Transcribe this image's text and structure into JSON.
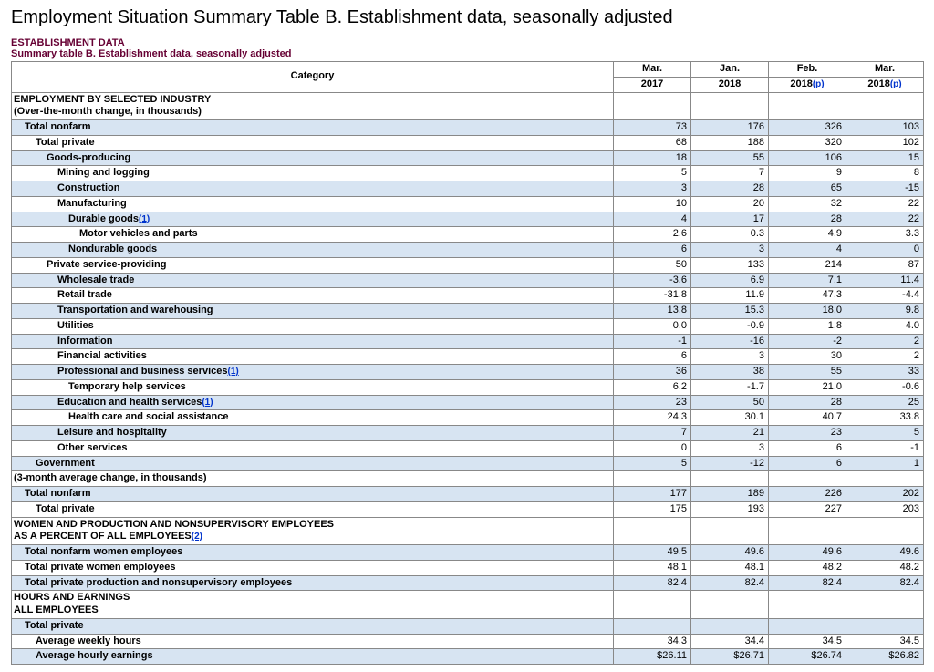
{
  "title": "Employment Situation Summary Table B. Establishment data, seasonally adjusted",
  "subhead1": "ESTABLISHMENT DATA",
  "subhead2": "Summary table B. Establishment data, seasonally adjusted",
  "columns": {
    "cat": "Category",
    "c1a": "Mar.",
    "c1b": "2017",
    "c2a": "Jan.",
    "c2b": "2018",
    "c3a": "Feb.",
    "c3b": "2018",
    "c4a": "Mar.",
    "c4b": "2018",
    "p": "(p)"
  },
  "sections": [
    {
      "header": "EMPLOYMENT BY SELECTED INDUSTRY\n(Over-the-month change, in thousands)",
      "rows": [
        {
          "label": "Total nonfarm",
          "indent": 1,
          "shaded": true,
          "v": [
            "73",
            "176",
            "326",
            "103"
          ]
        },
        {
          "label": "Total private",
          "indent": 2,
          "shaded": false,
          "v": [
            "68",
            "188",
            "320",
            "102"
          ]
        },
        {
          "label": "Goods-producing",
          "indent": 3,
          "shaded": true,
          "v": [
            "18",
            "55",
            "106",
            "15"
          ]
        },
        {
          "label": "Mining and logging",
          "indent": 4,
          "shaded": false,
          "v": [
            "5",
            "7",
            "9",
            "8"
          ]
        },
        {
          "label": "Construction",
          "indent": 4,
          "shaded": true,
          "v": [
            "3",
            "28",
            "65",
            "-15"
          ]
        },
        {
          "label": "Manufacturing",
          "indent": 4,
          "shaded": false,
          "v": [
            "10",
            "20",
            "32",
            "22"
          ]
        },
        {
          "label": "Durable goods",
          "indent": 5,
          "shaded": true,
          "fn": "1",
          "v": [
            "4",
            "17",
            "28",
            "22"
          ]
        },
        {
          "label": "Motor vehicles and parts",
          "indent": 6,
          "shaded": false,
          "v": [
            "2.6",
            "0.3",
            "4.9",
            "3.3"
          ]
        },
        {
          "label": "Nondurable goods",
          "indent": 5,
          "shaded": true,
          "v": [
            "6",
            "3",
            "4",
            "0"
          ]
        },
        {
          "label": "Private service-providing",
          "indent": 3,
          "shaded": false,
          "v": [
            "50",
            "133",
            "214",
            "87"
          ]
        },
        {
          "label": "Wholesale trade",
          "indent": 4,
          "shaded": true,
          "v": [
            "-3.6",
            "6.9",
            "7.1",
            "11.4"
          ]
        },
        {
          "label": "Retail trade",
          "indent": 4,
          "shaded": false,
          "v": [
            "-31.8",
            "11.9",
            "47.3",
            "-4.4"
          ]
        },
        {
          "label": "Transportation and warehousing",
          "indent": 4,
          "shaded": true,
          "v": [
            "13.8",
            "15.3",
            "18.0",
            "9.8"
          ]
        },
        {
          "label": "Utilities",
          "indent": 4,
          "shaded": false,
          "v": [
            "0.0",
            "-0.9",
            "1.8",
            "4.0"
          ]
        },
        {
          "label": "Information",
          "indent": 4,
          "shaded": true,
          "v": [
            "-1",
            "-16",
            "-2",
            "2"
          ]
        },
        {
          "label": "Financial activities",
          "indent": 4,
          "shaded": false,
          "v": [
            "6",
            "3",
            "30",
            "2"
          ]
        },
        {
          "label": "Professional and business services",
          "indent": 4,
          "shaded": true,
          "fn": "1",
          "v": [
            "36",
            "38",
            "55",
            "33"
          ]
        },
        {
          "label": "Temporary help services",
          "indent": 5,
          "shaded": false,
          "v": [
            "6.2",
            "-1.7",
            "21.0",
            "-0.6"
          ]
        },
        {
          "label": "Education and health services",
          "indent": 4,
          "shaded": true,
          "fn": "1",
          "v": [
            "23",
            "50",
            "28",
            "25"
          ]
        },
        {
          "label": "Health care and social assistance",
          "indent": 5,
          "shaded": false,
          "v": [
            "24.3",
            "30.1",
            "40.7",
            "33.8"
          ]
        },
        {
          "label": "Leisure and hospitality",
          "indent": 4,
          "shaded": true,
          "v": [
            "7",
            "21",
            "23",
            "5"
          ]
        },
        {
          "label": "Other services",
          "indent": 4,
          "shaded": false,
          "v": [
            "0",
            "3",
            "6",
            "-1"
          ]
        },
        {
          "label": "Government",
          "indent": 2,
          "shaded": true,
          "v": [
            "5",
            "-12",
            "6",
            "1"
          ]
        }
      ]
    },
    {
      "header": "(3-month average change, in thousands)",
      "rows": [
        {
          "label": "Total nonfarm",
          "indent": 1,
          "shaded": true,
          "v": [
            "177",
            "189",
            "226",
            "202"
          ]
        },
        {
          "label": "Total private",
          "indent": 2,
          "shaded": false,
          "v": [
            "175",
            "193",
            "227",
            "203"
          ]
        }
      ]
    },
    {
      "header": "WOMEN AND PRODUCTION AND NONSUPERVISORY EMPLOYEES\nAS A PERCENT OF ALL EMPLOYEES",
      "header_fn": "2",
      "rows": [
        {
          "label": "Total nonfarm women employees",
          "indent": 1,
          "shaded": true,
          "v": [
            "49.5",
            "49.6",
            "49.6",
            "49.6"
          ]
        },
        {
          "label": "Total private women employees",
          "indent": 1,
          "shaded": false,
          "v": [
            "48.1",
            "48.1",
            "48.2",
            "48.2"
          ]
        },
        {
          "label": "Total private production and nonsupervisory employees",
          "indent": 1,
          "shaded": true,
          "v": [
            "82.4",
            "82.4",
            "82.4",
            "82.4"
          ]
        }
      ]
    },
    {
      "header": "HOURS AND EARNINGS\nALL EMPLOYEES",
      "rows": [
        {
          "label": "Total private",
          "indent": 1,
          "shaded": true,
          "v": [
            "",
            "",
            "",
            ""
          ]
        },
        {
          "label": "Average weekly hours",
          "indent": 2,
          "shaded": false,
          "v": [
            "34.3",
            "34.4",
            "34.5",
            "34.5"
          ]
        },
        {
          "label": "Average hourly earnings",
          "indent": 2,
          "shaded": true,
          "v": [
            "$26.11",
            "$26.71",
            "$26.74",
            "$26.82"
          ]
        }
      ]
    }
  ]
}
